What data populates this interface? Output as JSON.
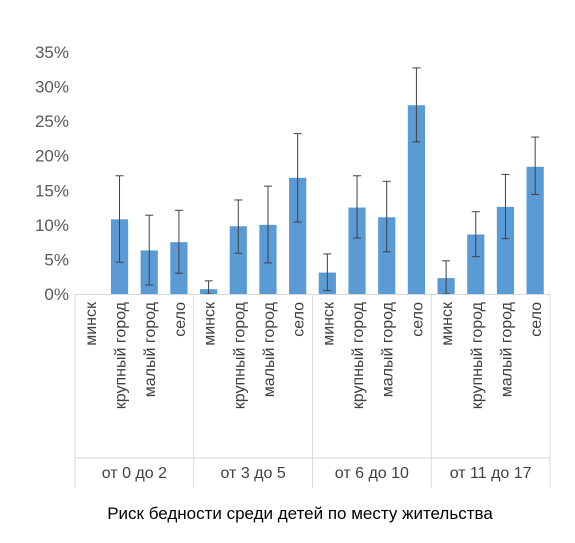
{
  "chart_data": {
    "type": "bar",
    "title": "",
    "caption": "Риск бедности среди детей по месту жительства",
    "xlabel": "",
    "ylabel": "",
    "ylim": [
      0,
      35
    ],
    "yticks": [
      "0%",
      "5%",
      "10%",
      "15%",
      "20%",
      "25%",
      "30%",
      "35%"
    ],
    "grid": false,
    "legend": "none",
    "bar_color": "#5b9bd5",
    "error_color": "#404040",
    "groups": [
      {
        "label": "от 0 до 2",
        "categories": [
          "минск",
          "крупный город",
          "малый город",
          "село"
        ],
        "values": [
          0,
          10.8,
          6.3,
          7.5
        ],
        "err_low": [
          0,
          4.6,
          1.3,
          3.0
        ],
        "err_high": [
          0,
          17.1,
          11.4,
          12.1
        ]
      },
      {
        "label": "от 3 до 5",
        "categories": [
          "минск",
          "крупный город",
          "малый город",
          "село"
        ],
        "values": [
          0.7,
          9.8,
          10.0,
          16.8
        ],
        "err_low": [
          0,
          5.9,
          4.5,
          10.4
        ],
        "err_high": [
          1.9,
          13.6,
          15.6,
          23.2
        ]
      },
      {
        "label": "от 6 до 10",
        "categories": [
          "минск",
          "крупный город",
          "малый город",
          "село"
        ],
        "values": [
          3.1,
          12.5,
          11.1,
          27.3
        ],
        "err_low": [
          0.5,
          8.1,
          6.1,
          22.0
        ],
        "err_high": [
          5.8,
          17.1,
          16.3,
          32.7
        ]
      },
      {
        "label": "от 11 до 17",
        "categories": [
          "минск",
          "крупный город",
          "малый город",
          "село"
        ],
        "values": [
          2.3,
          8.6,
          12.6,
          18.4
        ],
        "err_low": [
          0,
          5.4,
          8.0,
          14.4
        ],
        "err_high": [
          4.8,
          11.9,
          17.3,
          22.7
        ]
      }
    ]
  }
}
